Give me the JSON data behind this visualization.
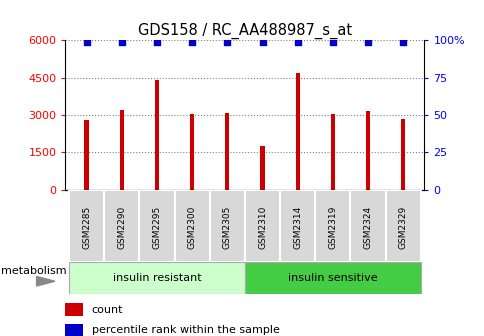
{
  "title": "GDS158 / RC_AA488987_s_at",
  "samples": [
    "GSM2285",
    "GSM2290",
    "GSM2295",
    "GSM2300",
    "GSM2305",
    "GSM2310",
    "GSM2314",
    "GSM2319",
    "GSM2324",
    "GSM2329"
  ],
  "counts": [
    2800,
    3200,
    4400,
    3050,
    3080,
    1750,
    4700,
    3050,
    3150,
    2850
  ],
  "percentile_ranks": [
    99,
    99,
    99,
    99,
    99,
    99,
    99,
    99,
    99,
    99
  ],
  "group1_label": "insulin resistant",
  "group2_label": "insulin sensitive",
  "group1_count": 5,
  "group2_count": 5,
  "metabolism_label": "metabolism",
  "ylim_left": [
    0,
    6000
  ],
  "ylim_right": [
    0,
    100
  ],
  "yticks_left": [
    0,
    1500,
    3000,
    4500,
    6000
  ],
  "yticks_right": [
    0,
    25,
    50,
    75,
    100
  ],
  "bar_color": "#cc0000",
  "dot_color": "#0000cc",
  "group1_bg": "#ccffcc",
  "group2_bg": "#44cc44",
  "sample_bg": "#d8d8d8",
  "legend_count_label": "count",
  "legend_pct_label": "percentile rank within the sample"
}
